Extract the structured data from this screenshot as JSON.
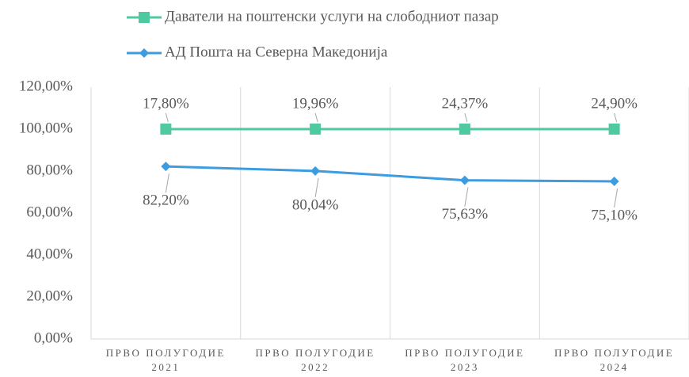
{
  "chart_data": {
    "type": "line",
    "stacked": true,
    "categories": [
      "ПРВО ПОЛУГОДИЕ 2021",
      "ПРВО ПОЛУГОДИЕ 2022",
      "ПРВО ПОЛУГОДИЕ 2023",
      "ПРВО ПОЛУГОДИЕ 2024"
    ],
    "series": [
      {
        "name": "АД Пошта на Северна Македонија",
        "color": "#3d9be0",
        "marker": "diamond",
        "values": [
          82.2,
          80.04,
          75.63,
          75.1
        ],
        "value_labels": [
          "82,20%",
          "80,04%",
          "75,63%",
          "75,10%"
        ]
      },
      {
        "name": "Даватели на поштенски услуги на слободниот пазар",
        "color": "#4fc9a0",
        "marker": "square",
        "values": [
          17.8,
          19.96,
          24.37,
          24.9
        ],
        "value_labels": [
          "17,80%",
          "19,96%",
          "24,37%",
          "24,90%"
        ]
      }
    ],
    "ylim": [
      0,
      120
    ],
    "yticks": [
      {
        "value": 0,
        "label": "0,00%"
      },
      {
        "value": 20,
        "label": "20,00%"
      },
      {
        "value": 40,
        "label": "40,00%"
      },
      {
        "value": 60,
        "label": "60,00%"
      },
      {
        "value": 80,
        "label": "80,00%"
      },
      {
        "value": 100,
        "label": "100,00%"
      },
      {
        "value": 120,
        "label": "120,00%"
      }
    ],
    "legend": "top"
  }
}
